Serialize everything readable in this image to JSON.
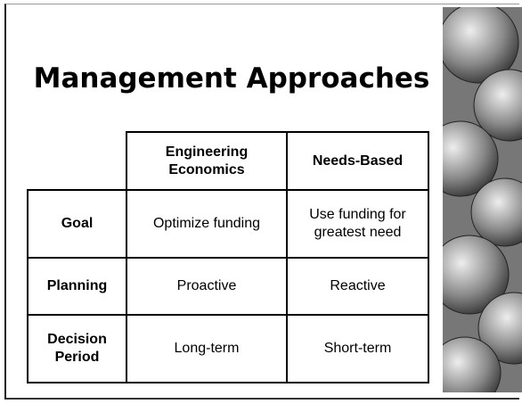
{
  "title": "Management Approaches",
  "table": {
    "columns": [
      "Engineering Economics",
      "Needs-Based"
    ],
    "rows": [
      {
        "label": "Goal",
        "cells": [
          "Optimize funding",
          "Use funding for greatest need"
        ]
      },
      {
        "label": "Planning",
        "cells": [
          "Proactive",
          "Reactive"
        ]
      },
      {
        "label": "Decision Period",
        "cells": [
          "Long-term",
          "Short-term"
        ]
      }
    ]
  }
}
